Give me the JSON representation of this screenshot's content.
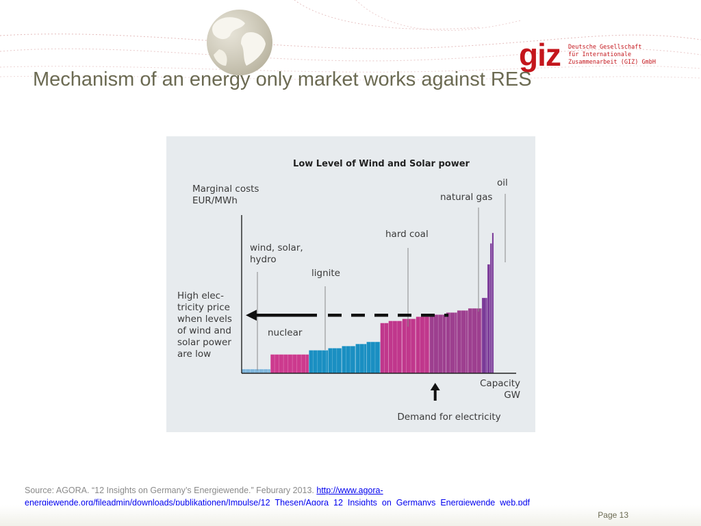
{
  "slide": {
    "title": "Mechanism of an energy only market works against RES",
    "page": "Page 13"
  },
  "logo": {
    "mark": "giz",
    "lines": [
      "Deutsche Gesellschaft",
      "für Internationale",
      "Zusammenarbeit (GIZ) GmbH"
    ]
  },
  "source": {
    "prefix": "Source: AGORA. “12 Insights on Germany’s Energiewende.” Feburary 2013. ",
    "link_line1": "http://www.agora-",
    "link_line2": "energiewende.org/fileadmin/downloads/publikationen/Impulse/12_Thesen/Agora_12_Insights_on_Germanys_Energiewende_web.pdf"
  },
  "chart_data": {
    "type": "bar",
    "title": "Low Level of Wind and Solar power",
    "ylabel": [
      "Marginal costs",
      "EUR/MWh"
    ],
    "xlabel": [
      "Capacity",
      "GW"
    ],
    "ylim": [
      0,
      100
    ],
    "xlim": [
      0,
      100
    ],
    "grid": false,
    "groups": [
      {
        "name": "wind, solar, hydro",
        "label_lines": [
          "wind, solar,",
          "hydro"
        ],
        "color": "#7fb6dc",
        "bars": [
          [
            0,
            10.5,
            2
          ]
        ]
      },
      {
        "name": "nuclear",
        "label_lines": [
          "nuclear"
        ],
        "color": "#cc3a8e",
        "bars": [
          [
            10.5,
            24.5,
            9
          ]
        ]
      },
      {
        "name": "lignite",
        "label_lines": [
          "lignite"
        ],
        "color": "#1a8fc2",
        "bars": [
          [
            24.5,
            31.5,
            11
          ],
          [
            31.5,
            36.5,
            12
          ],
          [
            36.5,
            41.5,
            13
          ],
          [
            41.5,
            45.5,
            14
          ],
          [
            45.5,
            50.5,
            15
          ]
        ]
      },
      {
        "name": "hard coal",
        "label_lines": [
          "hard coal"
        ],
        "color": "#c0378c",
        "bars": [
          [
            50.5,
            53.5,
            24
          ],
          [
            53.5,
            58.5,
            25
          ],
          [
            58.5,
            63.5,
            26
          ],
          [
            63.5,
            68.5,
            27
          ]
        ]
      },
      {
        "name": "natural gas",
        "label_lines": [
          "natural gas"
        ],
        "color": "#9d3f8f",
        "bars": [
          [
            68.5,
            74.5,
            28
          ],
          [
            74.5,
            78.5,
            29
          ],
          [
            78.5,
            82.5,
            30
          ],
          [
            82.5,
            87.5,
            31
          ]
        ]
      },
      {
        "name": "oil",
        "label_lines": [
          "oil"
        ],
        "color": "#7a3a98",
        "bars": [
          [
            87.5,
            89.5,
            36
          ],
          [
            89.5,
            90.5,
            52
          ],
          [
            90.5,
            91.2,
            62
          ],
          [
            91.2,
            91.8,
            67
          ]
        ]
      }
    ],
    "demand": {
      "x": 70.5,
      "label": "Demand for electricity"
    },
    "price_level": 29,
    "price_label": [
      "High elec-",
      "tricity price",
      "when levels",
      "of wind and",
      "solar power",
      "are low"
    ]
  }
}
